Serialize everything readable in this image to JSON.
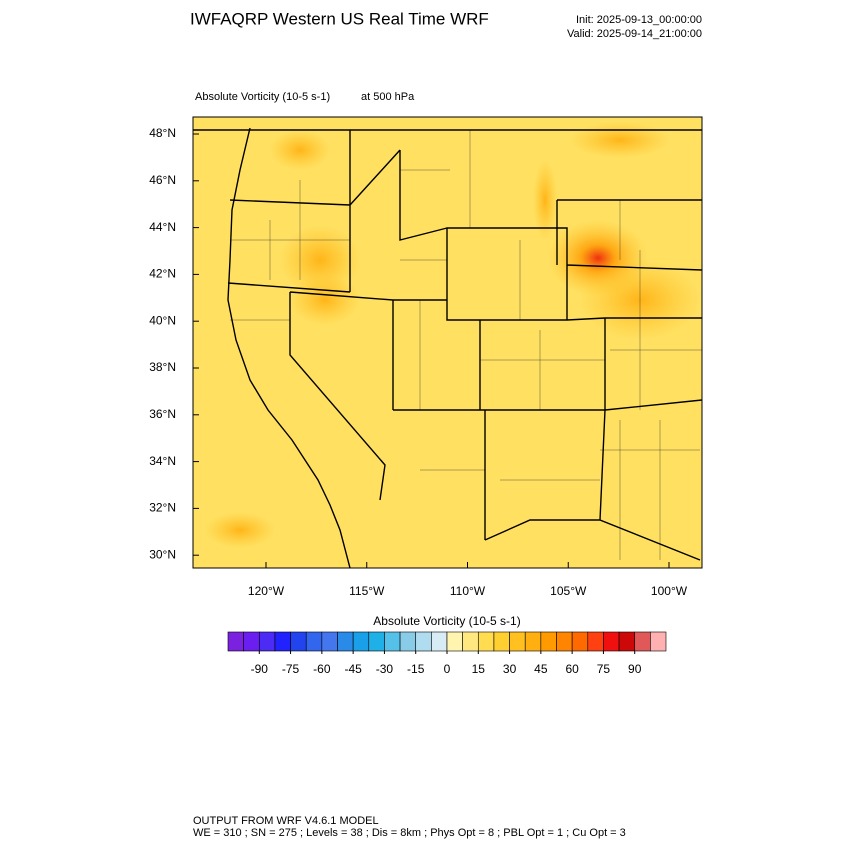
{
  "header": {
    "title": "IWFAQRP Western US Real Time WRF",
    "init": "Init: 2025-09-13_00:00:00",
    "valid": "Valid: 2025-09-14_21:00:00"
  },
  "map": {
    "field_label": "Absolute Vorticity   (10-5 s-1)",
    "level_label": "at   500 hPa",
    "lat_labels": [
      "48°N",
      "46°N",
      "44°N",
      "42°N",
      "40°N",
      "38°N",
      "36°N",
      "34°N",
      "32°N",
      "30°N"
    ],
    "lon_labels": [
      "120°W",
      "115°W",
      "110°W",
      "105°W",
      "100°W"
    ]
  },
  "colorbar": {
    "title": "Absolute Vorticity  (10-5 s-1)",
    "lim": [
      -105,
      105
    ],
    "ticks": [
      -90,
      -75,
      -60,
      -45,
      -30,
      -15,
      0,
      15,
      30,
      45,
      60,
      75,
      90
    ],
    "colors": [
      "#7b22e0",
      "#6a1ff0",
      "#4c2cf5",
      "#2222ff",
      "#2244ee",
      "#3366ee",
      "#4477ee",
      "#2a8ae8",
      "#1aa0e8",
      "#20b0e8",
      "#55c0e8",
      "#88cce8",
      "#b0dcef",
      "#d8ecf5",
      "#fff4b0",
      "#ffe880",
      "#ffdc50",
      "#ffd030",
      "#ffc020",
      "#ffb010",
      "#ff9a00",
      "#ff8400",
      "#ff6a00",
      "#ff4010",
      "#f01010",
      "#cc0808",
      "#e05858",
      "#ffb0b0"
    ]
  },
  "footer": {
    "line1": "OUTPUT FROM WRF V4.6.1 MODEL",
    "line2": "WE = 310 ; SN = 275 ; Levels = 38 ; Dis = 8km ; Phys Opt = 8 ; PBL Opt = 1 ; Cu Opt = 3"
  }
}
